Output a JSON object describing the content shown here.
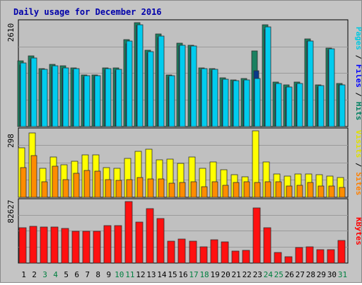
{
  "chart_data": {
    "type": "bar",
    "title": "Daily usage for December 2016",
    "categories": [
      "1",
      "2",
      "3",
      "4",
      "5",
      "6",
      "7",
      "8",
      "9",
      "10",
      "11",
      "12",
      "13",
      "14",
      "15",
      "16",
      "17",
      "18",
      "19",
      "20",
      "21",
      "22",
      "23",
      "24",
      "25",
      "26",
      "27",
      "28",
      "29",
      "30",
      "31"
    ],
    "weekend_days": [
      "3",
      "4",
      "10",
      "11",
      "17",
      "18",
      "24",
      "25",
      "31"
    ],
    "panels": [
      {
        "name": "pages-files-hits",
        "max_label": "2610",
        "ymax": 2610,
        "legend": [
          {
            "text": "Pages",
            "color": "#00c8e0"
          },
          {
            "text": "Files",
            "color": "#0000ff"
          },
          {
            "text": "Hits",
            "color": "#008060"
          }
        ],
        "series": [
          {
            "name": "Hits",
            "color": "#1a8060",
            "values": [
              1650,
              1780,
              1460,
              1570,
              1520,
              1480,
              1300,
              1300,
              1480,
              1480,
              2190,
              2610,
              1910,
              2330,
              1300,
              2090,
              2050,
              1470,
              1450,
              1220,
              1180,
              1210,
              1900,
              2560,
              1120,
              1050,
              1110,
              2200,
              1050,
              1970,
              1090
            ]
          },
          {
            "name": "Files",
            "color": "#0a3a8a",
            "values": [
              1540,
              1680,
              1400,
              1490,
              1460,
              1420,
              1250,
              1260,
              1420,
              1400,
              2080,
              2540,
              1840,
              2230,
              1250,
              2020,
              1990,
              1420,
              1410,
              1170,
              1140,
              1160,
              1400,
              2430,
              1070,
              1000,
              1060,
              2150,
              1000,
              1920,
              1040
            ]
          },
          {
            "name": "Pages",
            "color": "#00ccee",
            "values": [
              1590,
              1720,
              1430,
              1520,
              1480,
              1450,
              1270,
              1280,
              1450,
              1430,
              2140,
              2560,
              1880,
              2280,
              1280,
              2050,
              2020,
              1450,
              1430,
              1190,
              1150,
              1180,
              1210,
              2510,
              1080,
              1000,
              1080,
              2150,
              1030,
              1950,
              1040
            ]
          }
        ]
      },
      {
        "name": "visits-sites",
        "max_label": "298",
        "ymax": 298,
        "legend": [
          {
            "text": "Visits",
            "color": "#e0e000"
          },
          {
            "text": "Sites",
            "color": "#ff8000"
          }
        ],
        "series": [
          {
            "name": "Visits",
            "color": "#ffff00",
            "values": [
              223,
              288,
              129,
              180,
              147,
              162,
              190,
              190,
              132,
              129,
              174,
              207,
              216,
              167,
              172,
              151,
              182,
              131,
              158,
              123,
              103,
              93,
              298,
              158,
              105,
              94,
              105,
              105,
              102,
              95,
              88
            ]
          },
          {
            "name": "Sites",
            "color": "#ff8c00",
            "values": [
              133,
              186,
              70,
              139,
              79,
              108,
              119,
              118,
              79,
              76,
              79,
              88,
              81,
              82,
              63,
              66,
              70,
              48,
              70,
              53,
              67,
              71,
              68,
              70,
              71,
              52,
              53,
              66,
              50,
              51,
              45
            ]
          }
        ]
      },
      {
        "name": "kbytes",
        "max_label": "82627",
        "ymax": 82627,
        "legend": [
          {
            "text": "KBytes",
            "color": "#ff0000"
          }
        ],
        "series": [
          {
            "name": "KBytes",
            "color": "#ff1010",
            "values": [
              47500,
              49500,
              48500,
              48000,
              46500,
              42500,
              42500,
              42500,
              50500,
              50000,
              82627,
              55500,
              73500,
              59500,
              29000,
              32000,
              29000,
              21500,
              31500,
              28500,
              16500,
              17000,
              74000,
              47500,
              14000,
              8500,
              21000,
              22000,
              18000,
              18500,
              30500
            ]
          }
        ]
      }
    ]
  }
}
